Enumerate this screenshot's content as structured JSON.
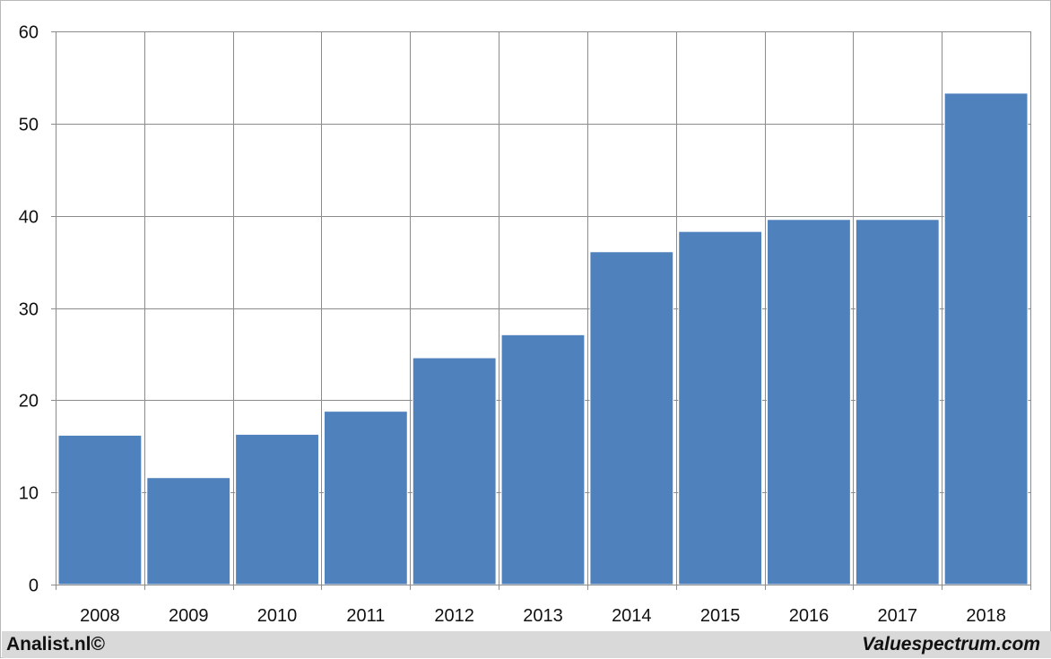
{
  "chart_data": {
    "type": "bar",
    "title": "",
    "xlabel": "",
    "ylabel": "",
    "categories": [
      "2008",
      "2009",
      "2010",
      "2011",
      "2012",
      "2013",
      "2014",
      "2015",
      "2016",
      "2017",
      "2018"
    ],
    "values": [
      16.2,
      11.6,
      16.3,
      18.8,
      24.6,
      27.1,
      36.1,
      38.3,
      39.6,
      39.6,
      53.3
    ],
    "ylim": [
      0,
      60
    ],
    "yticks": [
      0,
      10,
      20,
      30,
      40,
      50,
      60
    ],
    "grid": true,
    "bar_color": "#4f81bd",
    "grid_color": "#8c8c8c"
  },
  "footer": {
    "left": "Analist.nl©",
    "right": "Valuespectrum.com",
    "background": "#d9d9d9"
  }
}
